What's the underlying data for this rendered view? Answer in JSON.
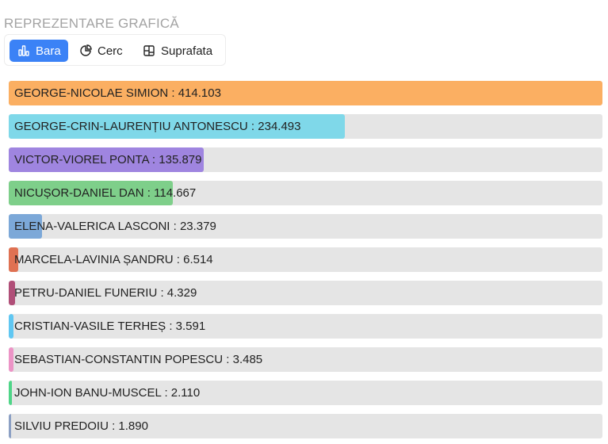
{
  "section_title": "REPREZENTARE GRAFICĂ",
  "tabs": [
    {
      "label": "Bara",
      "icon": "bar-chart-icon",
      "active": true
    },
    {
      "label": "Cerc",
      "icon": "pie-chart-icon",
      "active": false
    },
    {
      "label": "Suprafata",
      "icon": "treemap-icon",
      "active": false
    }
  ],
  "chart_data": {
    "type": "bar",
    "orientation": "horizontal",
    "label_separator": " : ",
    "xlim": [
      0,
      414103
    ],
    "categories": [
      "GEORGE-NICOLAE SIMION",
      "GEORGE-CRIN-LAURENȚIU ANTONESCU",
      "VICTOR-VIOREL PONTA",
      "NICUȘOR-DANIEL DAN",
      "ELENA-VALERICA LASCONI",
      "MARCELA-LAVINIA ȘANDRU",
      "PETRU-DANIEL FUNERIU",
      "CRISTIAN-VASILE TERHEȘ",
      "SEBASTIAN-CONSTANTIN POPESCU",
      "JOHN-ION BANU-MUSCEL",
      "SILVIU PREDOIU"
    ],
    "values": [
      414103,
      234493,
      135879,
      114667,
      23379,
      6514,
      4329,
      3591,
      3485,
      2110,
      1890
    ],
    "value_labels": [
      "414.103",
      "234.493",
      "135.879",
      "114.667",
      "23.379",
      "6.514",
      "4.329",
      "3.591",
      "3.485",
      "2.110",
      "1.890"
    ],
    "colors": [
      "#fbaf62",
      "#7fd8e9",
      "#9f85e0",
      "#7ecf8a",
      "#7ca8d8",
      "#df7152",
      "#b04f78",
      "#60c7f2",
      "#ec94c6",
      "#4fd588",
      "#8ca0c4"
    ]
  }
}
